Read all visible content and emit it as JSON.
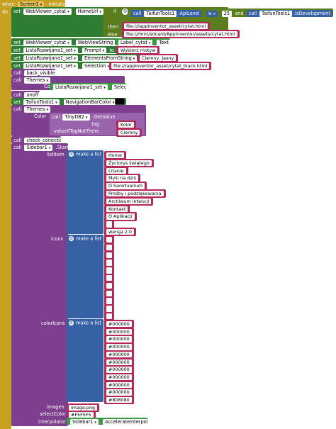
{
  "event": {
    "when": "when",
    "do": "do",
    "component": "Screen1",
    "event_name": ".Initialize"
  },
  "kw": {
    "set": "set",
    "to": "to",
    "call": "call",
    "if": "if",
    "then": "then",
    "else": "else",
    "and": "and",
    "make_a_list": "make a list",
    "color": "Color",
    "tag": "tag",
    "value_if_not_there": "valueIfTagNotThere",
    "start": ".Start"
  },
  "row1": {
    "component": "WebViewer_cytat",
    "property": "HomeUrl",
    "call": "TaifunTools1",
    "method": ".ApiLevel",
    "op": "≥",
    "number": "25",
    "and_call": "TaifunTools1",
    "and_method": ".IsDevelopment",
    "then_value": "file:///appinventor_asset/cytat.html",
    "else_value": "file:///mnt/sdcard/AppInventor/assets/cytat.html"
  },
  "row2": {
    "component": "WebViewer_cytat",
    "property": "WebViewString",
    "value_component": "Label_cytat",
    "value_property": "Text"
  },
  "row3": {
    "component": "ListaRozwijana1_set",
    "property": "Prompt",
    "value": "Wybierz motyw"
  },
  "row4": {
    "component": "ListaRozwijana1_set",
    "property": "ElementsFromString",
    "value": "Ciemny, Jasny"
  },
  "row5": {
    "component": "ListaRozwijana1_set",
    "property": "Selection",
    "value": "file:///appinventor_asset/cytat_black.html"
  },
  "call_back_visible": "back_visible",
  "call_themes1": {
    "name": "Themes",
    "arg_component": "ListaRozwijana1_set",
    "arg_property": "Selection"
  },
  "call_onoff": "onoff",
  "row_navbar": {
    "component": "TaifunTools1",
    "property": "NavigationBarColor"
  },
  "call_themes2": {
    "name": "Themes",
    "db": "TinyDB2",
    "method": ".GetValue",
    "tag_value": "Kolor",
    "fallback_value": "Ciemny"
  },
  "call_check": "check_conection",
  "sidebar": {
    "component": "Sidebar1",
    "list_item_label": "listItem",
    "list_items": [
      "Home",
      "Życiorys świętego",
      "Litanie",
      "Myśl na dziś",
      "O Sanktuarium",
      "Prośby i podziękowania",
      "Archiwum intencji",
      "Kontakt",
      "O Aplikacji",
      "",
      "wersja 2.0"
    ],
    "icons_label": "icons",
    "icons_count": 11,
    "color_icons_label": "colorIcons",
    "color_icons": [
      "#000000",
      "#000000",
      "#000000",
      "#000000",
      "#000000",
      "#000000",
      "#000000",
      "#000000",
      "#000000",
      "#000000",
      "#808080"
    ],
    "imagen_label": "imagen",
    "imagen_value": "image.png",
    "select_color_label": "selectColor",
    "select_color_value": "#F5F5F5",
    "interpolator_label": "interpolator",
    "interpolator_component": "Sidebar1",
    "interpolator_value": "AccelerateInterpolator"
  },
  "colors": {
    "event": "#c8a020",
    "setter": "#2f7d32",
    "procedure": "#7e3f8f",
    "text": "#b5285e",
    "control": "#5b7d1e",
    "list": "#3761a5",
    "navbar_swatch": "#000000"
  }
}
